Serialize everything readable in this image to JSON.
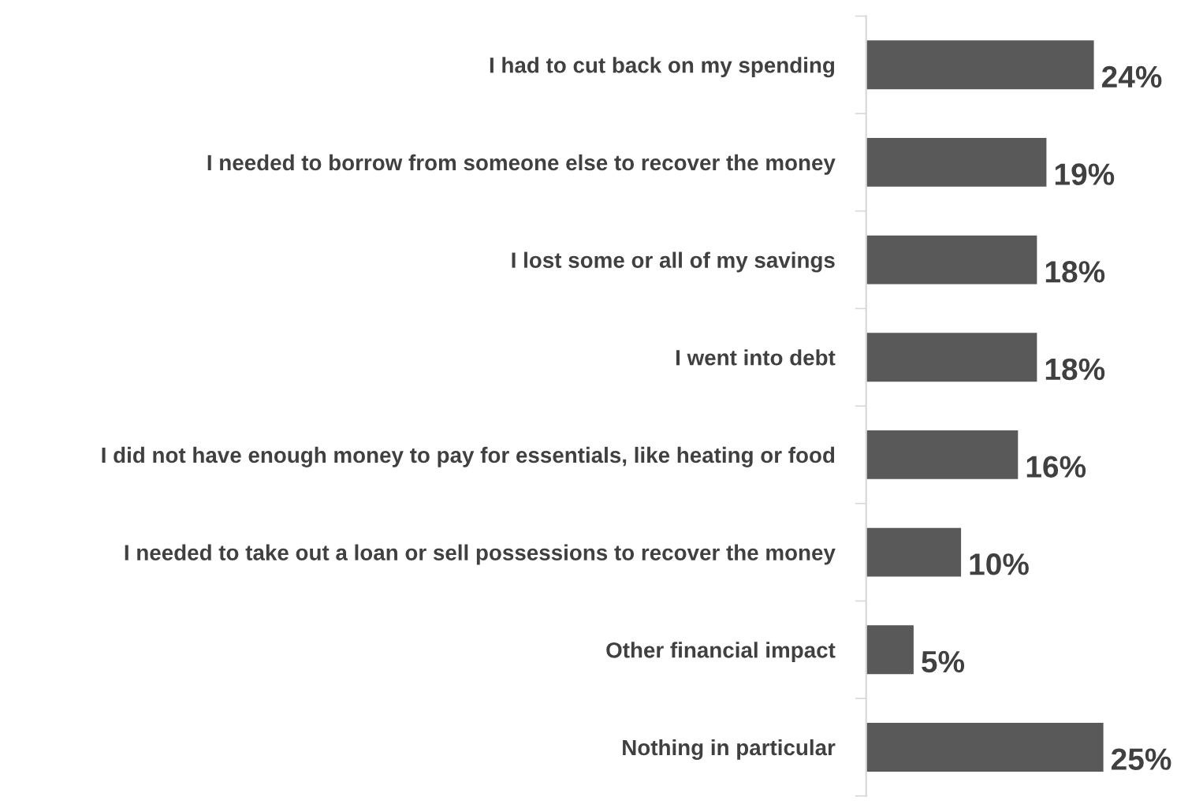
{
  "chart_data": {
    "type": "bar",
    "orientation": "horizontal",
    "categories": [
      "I had to cut back on my spending",
      "I needed to borrow from someone else to recover the money",
      "I lost some or all of my savings",
      "I went into debt",
      "I did not have enough money to pay for essentials, like heating or food",
      "I needed to take out a loan or sell possessions to recover the money",
      "Other financial impact",
      "Nothing in particular"
    ],
    "values": [
      24,
      19,
      18,
      18,
      16,
      10,
      5,
      25
    ],
    "value_labels": [
      "24%",
      "19%",
      "18%",
      "18%",
      "16%",
      "10%",
      "5%",
      "25%"
    ],
    "color": "#595959",
    "grid": false,
    "legend": false
  }
}
